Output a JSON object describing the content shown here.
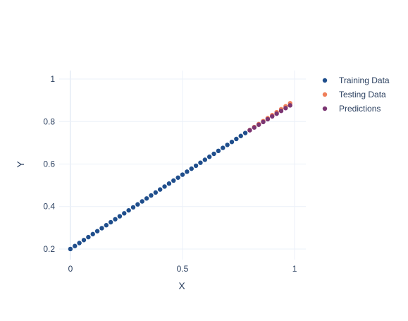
{
  "chart_data": {
    "type": "scatter",
    "title": "",
    "xlabel": "X",
    "ylabel": "Y",
    "xlim": [
      -0.05,
      1.05
    ],
    "ylim": [
      0.15,
      1.04
    ],
    "grid": true,
    "legend_position": "top-right",
    "x_ticks": [
      {
        "value": 0,
        "label": "0"
      },
      {
        "value": 0.5,
        "label": "0.5"
      },
      {
        "value": 1,
        "label": "1"
      }
    ],
    "y_ticks": [
      {
        "value": 0.2,
        "label": "0.2"
      },
      {
        "value": 0.4,
        "label": "0.4"
      },
      {
        "value": 0.6,
        "label": "0.6"
      },
      {
        "value": 0.8,
        "label": "0.8"
      },
      {
        "value": 1,
        "label": "1"
      }
    ],
    "series": [
      {
        "name": "Training Data",
        "color": "#1f4e8c",
        "x": [
          0,
          0.02,
          0.04,
          0.06,
          0.08,
          0.1,
          0.12,
          0.14,
          0.16,
          0.18,
          0.2,
          0.22,
          0.24,
          0.26,
          0.28,
          0.3,
          0.32,
          0.34,
          0.36,
          0.38,
          0.4,
          0.42,
          0.44,
          0.46,
          0.48,
          0.5,
          0.52,
          0.54,
          0.56,
          0.58,
          0.6,
          0.62,
          0.64,
          0.66,
          0.68,
          0.7,
          0.72,
          0.74,
          0.76,
          0.78
        ],
        "y": [
          0.2,
          0.214,
          0.228,
          0.242,
          0.256,
          0.27,
          0.284,
          0.298,
          0.312,
          0.326,
          0.34,
          0.354,
          0.368,
          0.382,
          0.396,
          0.41,
          0.424,
          0.438,
          0.452,
          0.466,
          0.48,
          0.494,
          0.508,
          0.522,
          0.536,
          0.55,
          0.564,
          0.578,
          0.592,
          0.606,
          0.62,
          0.634,
          0.648,
          0.662,
          0.676,
          0.69,
          0.704,
          0.718,
          0.732,
          0.746
        ]
      },
      {
        "name": "Testing Data",
        "color": "#ef7f5a",
        "x": [
          0.8,
          0.82,
          0.84,
          0.86,
          0.88,
          0.9,
          0.92,
          0.94,
          0.96,
          0.98
        ],
        "y": [
          0.76,
          0.774,
          0.788,
          0.802,
          0.816,
          0.83,
          0.844,
          0.858,
          0.872,
          0.886
        ]
      },
      {
        "name": "Predictions",
        "color": "#7b3572",
        "x": [
          0.8,
          0.82,
          0.84,
          0.86,
          0.88,
          0.9,
          0.92,
          0.94,
          0.96,
          0.98
        ],
        "y": [
          0.759,
          0.772,
          0.785,
          0.798,
          0.811,
          0.824,
          0.837,
          0.85,
          0.863,
          0.876
        ]
      }
    ]
  }
}
